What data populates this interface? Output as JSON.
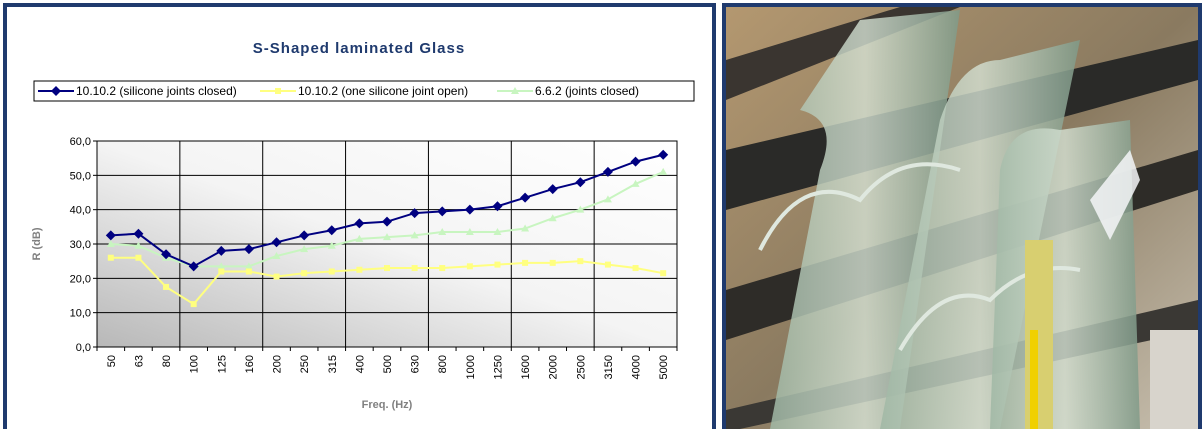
{
  "chart_data": {
    "type": "line",
    "title": "S-Shaped laminated Glass",
    "y_label": "R (dB)",
    "x_label": "Freq. (Hz)",
    "categories": [
      "50",
      "63",
      "80",
      "100",
      "125",
      "160",
      "200",
      "250",
      "315",
      "400",
      "500",
      "630",
      "800",
      "1000",
      "1250",
      "1600",
      "2000",
      "2500",
      "3150",
      "4000",
      "5000"
    ],
    "series": [
      {
        "name": "10.10.2 (silicone joints closed)",
        "color": "#000080",
        "marker": "diamond",
        "values": [
          32.5,
          33,
          27,
          23.5,
          28,
          28.5,
          30.5,
          32.5,
          34,
          36,
          36.5,
          39,
          39.5,
          40,
          41,
          43.5,
          46,
          48,
          51,
          54,
          56
        ]
      },
      {
        "name": "10.10.2 (one silicone joint open)",
        "color": "#ffff80",
        "marker": "square",
        "values": [
          26,
          26,
          17.5,
          12.5,
          22,
          22,
          20.5,
          21.5,
          22,
          22.5,
          23,
          23,
          23,
          23.5,
          24,
          24.5,
          24.5,
          25,
          24,
          23,
          21.5
        ]
      },
      {
        "name": "6.6.2 (joints closed)",
        "color": "#c8f5c0",
        "marker": "triangle",
        "values": [
          30,
          29.5,
          26,
          23.5,
          23.5,
          23.5,
          26.5,
          28.5,
          29.5,
          31.5,
          32,
          32.5,
          33.5,
          33.5,
          33.5,
          34.5,
          37.5,
          40,
          43,
          47.5,
          51
        ]
      }
    ],
    "ylim": [
      0,
      60
    ],
    "yticks": [
      {
        "value": 0,
        "label": "0,0"
      },
      {
        "value": 10,
        "label": "10,0"
      },
      {
        "value": 20,
        "label": "20,0"
      },
      {
        "value": 30,
        "label": "30,0"
      },
      {
        "value": 40,
        "label": "40,0"
      },
      {
        "value": 50,
        "label": "50,0"
      },
      {
        "value": 60,
        "label": "60,0"
      }
    ],
    "grid": true,
    "legend": "top"
  }
}
